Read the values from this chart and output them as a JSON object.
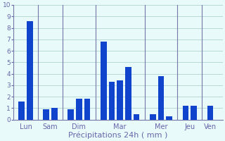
{
  "bars": [
    {
      "x": 1,
      "height": 1.6,
      "day": "Lun"
    },
    {
      "x": 2,
      "height": 8.6,
      "day": "Lun"
    },
    {
      "x": 4,
      "height": 0.9,
      "day": "Sam"
    },
    {
      "x": 5,
      "height": 1.0,
      "day": "Sam"
    },
    {
      "x": 7,
      "height": 0.9,
      "day": "Dim"
    },
    {
      "x": 8,
      "height": 1.8,
      "day": "Dim"
    },
    {
      "x": 9,
      "height": 1.8,
      "day": "Dim"
    },
    {
      "x": 11,
      "height": 6.8,
      "day": "Mar"
    },
    {
      "x": 12,
      "height": 3.3,
      "day": "Mar"
    },
    {
      "x": 13,
      "height": 3.4,
      "day": "Mar"
    },
    {
      "x": 14,
      "height": 4.6,
      "day": "Mar"
    },
    {
      "x": 15,
      "height": 0.5,
      "day": "Mar"
    },
    {
      "x": 17,
      "height": 0.5,
      "day": "Mer"
    },
    {
      "x": 18,
      "height": 3.8,
      "day": "Mer"
    },
    {
      "x": 19,
      "height": 0.3,
      "day": "Mer"
    },
    {
      "x": 21,
      "height": 1.2,
      "day": "Jeu"
    },
    {
      "x": 22,
      "height": 1.2,
      "day": "Jeu"
    },
    {
      "x": 24,
      "height": 1.2,
      "day": "Ven"
    }
  ],
  "day_labels": [
    "Lun",
    "Sam",
    "Dim",
    "Mar",
    "Mer",
    "Jeu",
    "Ven"
  ],
  "day_tick_positions": [
    1.5,
    4.5,
    8.0,
    13.0,
    18.0,
    21.5,
    24.0
  ],
  "day_separators": [
    3.0,
    6.0,
    10.0,
    16.0,
    20.0,
    23.0
  ],
  "bar_color": "#1144cc",
  "background_color": "#e8fafa",
  "grid_color": "#b8d8d8",
  "axis_color": "#7777aa",
  "text_color": "#6666aa",
  "xlabel": "Précipitations 24h ( mm )",
  "ylim": [
    0,
    10
  ],
  "yticks": [
    0,
    1,
    2,
    3,
    4,
    5,
    6,
    7,
    8,
    9,
    10
  ],
  "bar_width": 0.75,
  "xlim_min": 0,
  "xlim_max": 25.5
}
